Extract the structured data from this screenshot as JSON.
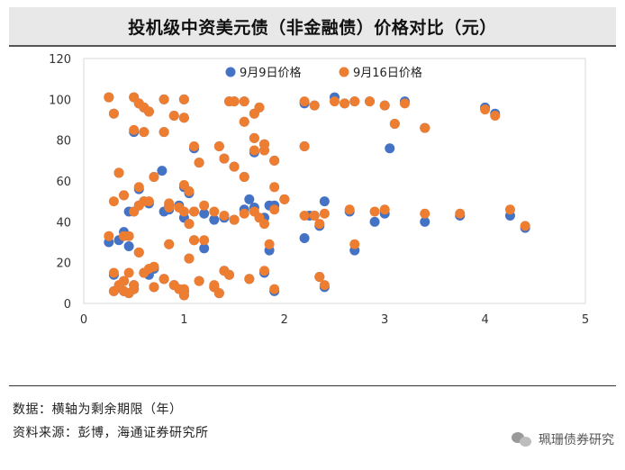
{
  "title": "投机级中资美元债（非金融债）价格对比（元）",
  "notes": {
    "data_note": "数据：横轴为剩余期限（年）",
    "source_note": "资料来源：彭博，海通证券研究所"
  },
  "watermark": {
    "text": "珮珊债券研究",
    "icon": "wechat-icon"
  },
  "colors": {
    "sep9": "#4472C4",
    "sep16": "#ED7D31"
  },
  "chart_data": {
    "type": "scatter",
    "title": "投机级中资美元债（非金融债）价格对比（元）",
    "xlabel": "",
    "ylabel": "",
    "xlim": [
      0,
      5
    ],
    "ylim": [
      0,
      120
    ],
    "x_ticks": [
      "0",
      "1",
      "2",
      "3",
      "4",
      "5"
    ],
    "y_ticks": [
      "0",
      "20",
      "40",
      "60",
      "80",
      "100",
      "120"
    ],
    "grid": false,
    "legend_position": "top",
    "series": [
      {
        "name": "9月9日价格",
        "points": [
          [
            0.25,
            101
          ],
          [
            0.3,
            93
          ],
          [
            0.5,
            101
          ],
          [
            0.55,
            98
          ],
          [
            0.6,
            96
          ],
          [
            0.65,
            94
          ],
          [
            0.8,
            100
          ],
          [
            0.9,
            92
          ],
          [
            1.0,
            91
          ],
          [
            1.45,
            99
          ],
          [
            1.5,
            99
          ],
          [
            1.6,
            99
          ],
          [
            1.7,
            93
          ],
          [
            1.75,
            96
          ],
          [
            2.2,
            98
          ],
          [
            2.3,
            97
          ],
          [
            2.5,
            101
          ],
          [
            2.6,
            98
          ],
          [
            2.7,
            99
          ],
          [
            2.85,
            99
          ],
          [
            3.0,
            97
          ],
          [
            3.2,
            99
          ],
          [
            4.0,
            96
          ],
          [
            4.1,
            93
          ],
          [
            0.5,
            84
          ],
          [
            0.6,
            84
          ],
          [
            0.8,
            84
          ],
          [
            1.0,
            100
          ],
          [
            1.6,
            89
          ],
          [
            1.7,
            81
          ],
          [
            1.8,
            78
          ],
          [
            3.1,
            88
          ],
          [
            3.4,
            86
          ],
          [
            0.35,
            64
          ],
          [
            0.4,
            53
          ],
          [
            0.55,
            56
          ],
          [
            0.6,
            50
          ],
          [
            0.65,
            49
          ],
          [
            0.7,
            62
          ],
          [
            0.78,
            65
          ],
          [
            0.85,
            48
          ],
          [
            1.0,
            57
          ],
          [
            1.05,
            54
          ],
          [
            1.1,
            76
          ],
          [
            1.15,
            69
          ],
          [
            1.35,
            77
          ],
          [
            1.4,
            71
          ],
          [
            1.5,
            67
          ],
          [
            1.6,
            62
          ],
          [
            1.7,
            74
          ],
          [
            1.8,
            75
          ],
          [
            1.9,
            70
          ],
          [
            2.2,
            77
          ],
          [
            3.05,
            76
          ],
          [
            0.25,
            30
          ],
          [
            0.35,
            31
          ],
          [
            0.4,
            35
          ],
          [
            0.45,
            45
          ],
          [
            0.5,
            45
          ],
          [
            0.55,
            48
          ],
          [
            0.8,
            45
          ],
          [
            0.85,
            46
          ],
          [
            0.95,
            48
          ],
          [
            1.0,
            42
          ],
          [
            1.05,
            39
          ],
          [
            1.1,
            45
          ],
          [
            1.2,
            44
          ],
          [
            1.3,
            41
          ],
          [
            1.4,
            42
          ],
          [
            1.5,
            41
          ],
          [
            1.6,
            46
          ],
          [
            1.65,
            51
          ],
          [
            1.7,
            47
          ],
          [
            1.8,
            42
          ],
          [
            1.85,
            48
          ],
          [
            1.9,
            48
          ],
          [
            2.0,
            51
          ],
          [
            2.2,
            32
          ],
          [
            2.25,
            43
          ],
          [
            2.3,
            43
          ],
          [
            2.35,
            38
          ],
          [
            2.4,
            50
          ],
          [
            2.65,
            45
          ],
          [
            2.7,
            26
          ],
          [
            2.9,
            40
          ],
          [
            3.0,
            44
          ],
          [
            3.4,
            40
          ],
          [
            3.75,
            43
          ],
          [
            4.25,
            43
          ],
          [
            4.4,
            37
          ],
          [
            0.3,
            14
          ],
          [
            0.35,
            8
          ],
          [
            0.4,
            6
          ],
          [
            0.45,
            28
          ],
          [
            0.5,
            7
          ],
          [
            0.55,
            25
          ],
          [
            0.6,
            15
          ],
          [
            0.65,
            14
          ],
          [
            0.7,
            17
          ],
          [
            0.8,
            12
          ],
          [
            0.85,
            29
          ],
          [
            1.0,
            6
          ],
          [
            1.05,
            22
          ],
          [
            1.1,
            31
          ],
          [
            1.15,
            11
          ],
          [
            1.2,
            27
          ],
          [
            1.3,
            8
          ],
          [
            1.35,
            5
          ],
          [
            1.4,
            16
          ],
          [
            1.45,
            14
          ],
          [
            1.65,
            12
          ],
          [
            1.8,
            15
          ],
          [
            1.85,
            26
          ],
          [
            1.9,
            6
          ],
          [
            2.35,
            13
          ],
          [
            2.4,
            8
          ],
          [
            0.3,
            6
          ],
          [
            0.4,
            11
          ],
          [
            0.45,
            5
          ],
          [
            0.5,
            9
          ],
          [
            0.7,
            8
          ],
          [
            0.9,
            9
          ],
          [
            1.0,
            4
          ]
        ]
      },
      {
        "name": "9月16日价格",
        "points": [
          [
            0.25,
            101
          ],
          [
            0.3,
            93
          ],
          [
            0.5,
            101
          ],
          [
            0.55,
            98
          ],
          [
            0.6,
            96
          ],
          [
            0.65,
            94
          ],
          [
            0.8,
            100
          ],
          [
            0.9,
            92
          ],
          [
            1.0,
            91
          ],
          [
            1.45,
            99
          ],
          [
            1.5,
            99
          ],
          [
            1.6,
            99
          ],
          [
            1.7,
            93
          ],
          [
            1.75,
            96
          ],
          [
            2.2,
            99
          ],
          [
            2.3,
            97
          ],
          [
            2.5,
            99
          ],
          [
            2.6,
            98
          ],
          [
            2.7,
            99
          ],
          [
            2.85,
            99
          ],
          [
            3.0,
            97
          ],
          [
            3.2,
            98
          ],
          [
            4.0,
            95
          ],
          [
            4.1,
            92
          ],
          [
            0.5,
            85
          ],
          [
            0.6,
            84
          ],
          [
            0.8,
            84
          ],
          [
            1.0,
            100
          ],
          [
            1.6,
            89
          ],
          [
            1.7,
            81
          ],
          [
            1.8,
            78
          ],
          [
            3.1,
            88
          ],
          [
            3.4,
            86
          ],
          [
            0.35,
            64
          ],
          [
            0.4,
            53
          ],
          [
            0.55,
            57
          ],
          [
            0.6,
            50
          ],
          [
            0.65,
            50
          ],
          [
            0.7,
            62
          ],
          [
            0.85,
            49
          ],
          [
            1.0,
            58
          ],
          [
            1.05,
            55
          ],
          [
            1.1,
            77
          ],
          [
            1.15,
            69
          ],
          [
            1.35,
            77
          ],
          [
            1.4,
            71
          ],
          [
            1.5,
            67
          ],
          [
            1.6,
            62
          ],
          [
            1.7,
            75
          ],
          [
            1.8,
            75
          ],
          [
            1.9,
            70
          ],
          [
            2.2,
            77
          ],
          [
            0.25,
            33
          ],
          [
            0.3,
            50
          ],
          [
            0.4,
            33
          ],
          [
            0.45,
            33
          ],
          [
            0.5,
            45
          ],
          [
            0.55,
            48
          ],
          [
            0.85,
            47
          ],
          [
            0.95,
            47
          ],
          [
            1.0,
            45
          ],
          [
            1.05,
            39
          ],
          [
            1.1,
            45
          ],
          [
            1.2,
            48
          ],
          [
            1.3,
            45
          ],
          [
            1.4,
            43
          ],
          [
            1.5,
            41
          ],
          [
            1.6,
            44
          ],
          [
            1.7,
            45
          ],
          [
            1.75,
            42
          ],
          [
            1.8,
            39
          ],
          [
            1.9,
            46
          ],
          [
            2.0,
            51
          ],
          [
            2.2,
            43
          ],
          [
            2.3,
            43
          ],
          [
            2.35,
            39
          ],
          [
            2.4,
            44
          ],
          [
            2.65,
            46
          ],
          [
            2.7,
            29
          ],
          [
            2.9,
            45
          ],
          [
            3.0,
            46
          ],
          [
            3.4,
            44
          ],
          [
            3.75,
            44
          ],
          [
            4.25,
            46
          ],
          [
            4.4,
            38
          ],
          [
            0.3,
            15
          ],
          [
            0.35,
            9
          ],
          [
            0.4,
            6
          ],
          [
            0.45,
            15
          ],
          [
            0.5,
            7
          ],
          [
            0.55,
            25
          ],
          [
            0.6,
            15
          ],
          [
            0.65,
            17
          ],
          [
            0.7,
            18
          ],
          [
            0.8,
            12
          ],
          [
            0.85,
            29
          ],
          [
            1.0,
            7
          ],
          [
            1.05,
            22
          ],
          [
            1.1,
            31
          ],
          [
            1.15,
            11
          ],
          [
            1.2,
            31
          ],
          [
            1.3,
            8
          ],
          [
            1.35,
            5
          ],
          [
            1.4,
            16
          ],
          [
            1.45,
            14
          ],
          [
            1.65,
            12
          ],
          [
            1.8,
            16
          ],
          [
            1.85,
            29
          ],
          [
            1.9,
            7
          ],
          [
            2.35,
            13
          ],
          [
            2.4,
            9
          ],
          [
            0.3,
            6
          ],
          [
            0.4,
            11
          ],
          [
            0.45,
            5
          ],
          [
            0.5,
            9
          ],
          [
            0.7,
            8
          ],
          [
            0.9,
            9
          ],
          [
            1.0,
            4
          ],
          [
            0.95,
            7
          ],
          [
            1.3,
            9
          ],
          [
            1.9,
            57
          ]
        ]
      }
    ]
  }
}
